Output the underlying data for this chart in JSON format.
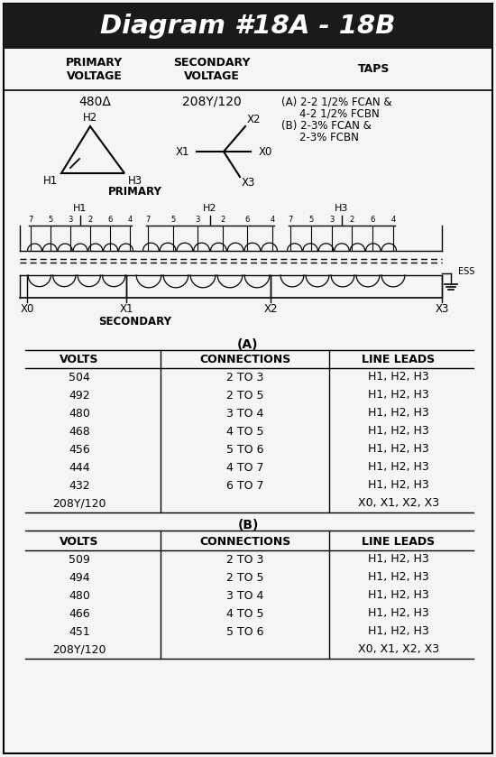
{
  "title": "Diagram #18A - 18B",
  "title_bg": "#1a1a1a",
  "title_color": "#ffffff",
  "bg_color": "#f5f5f5",
  "border_color": "#000000",
  "primary_voltage": "480Δ",
  "secondary_voltage": "208Y/120",
  "taps_line1": "(A) 2-2 1/2% FCAN &",
  "taps_line2": "4-2 1/2% FCBN",
  "taps_line3": "(B) 2-3% FCAN &",
  "taps_line4": "2-3% FCBN",
  "table_A_header": "(A)",
  "table_B_header": "(B)",
  "col_headers": [
    "VOLTS",
    "CONNECTIONS",
    "LINE LEADS"
  ],
  "table_A": [
    [
      "504",
      "2 TO 3",
      "H1, H2, H3"
    ],
    [
      "492",
      "2 TO 5",
      "H1, H2, H3"
    ],
    [
      "480",
      "3 TO 4",
      "H1, H2, H3"
    ],
    [
      "468",
      "4 TO 5",
      "H1, H2, H3"
    ],
    [
      "456",
      "5 TO 6",
      "H1, H2, H3"
    ],
    [
      "444",
      "4 TO 7",
      "H1, H2, H3"
    ],
    [
      "432",
      "6 TO 7",
      "H1, H2, H3"
    ],
    [
      "208Y/120",
      "",
      "X0, X1, X2, X3"
    ]
  ],
  "table_B": [
    [
      "509",
      "2 TO 3",
      "H1, H2, H3"
    ],
    [
      "494",
      "2 TO 5",
      "H1, H2, H3"
    ],
    [
      "480",
      "3 TO 4",
      "H1, H2, H3"
    ],
    [
      "466",
      "4 TO 5",
      "H1, H2, H3"
    ],
    [
      "451",
      "5 TO 6",
      "H1, H2, H3"
    ],
    [
      "208Y/120",
      "",
      "X0, X1, X2, X3"
    ]
  ],
  "fig_width": 5.5,
  "fig_height": 8.39,
  "dpi": 100
}
